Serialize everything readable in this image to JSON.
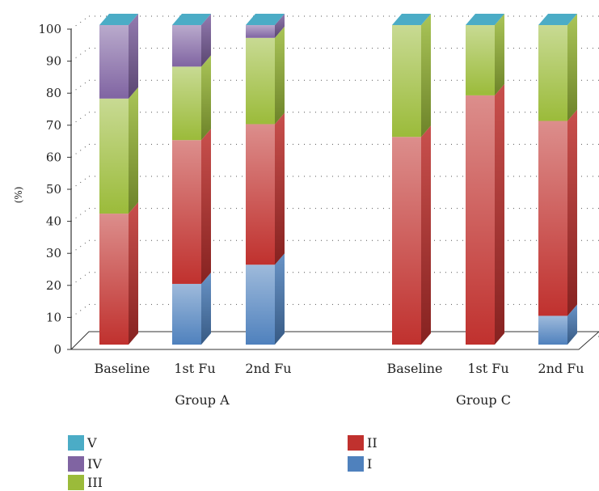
{
  "chart_data": {
    "type": "bar",
    "stacked": true,
    "three_d": true,
    "ylabel": "(%)",
    "ylim": [
      0,
      100
    ],
    "yticks": [
      0,
      10,
      20,
      30,
      40,
      50,
      60,
      70,
      80,
      90,
      100
    ],
    "grid": "dotted",
    "groups": [
      {
        "name": "Group A",
        "categories": [
          "Baseline",
          "1st Fu",
          "2nd Fu"
        ]
      },
      {
        "name": "Group C",
        "categories": [
          "Baseline",
          "1st Fu",
          "2nd Fu"
        ]
      }
    ],
    "categories": [
      "Baseline",
      "1st Fu",
      "2nd Fu",
      "Baseline",
      "1st Fu",
      "2nd Fu"
    ],
    "series": [
      {
        "name": "I",
        "color": "#4f81bd",
        "values": [
          0,
          19,
          25,
          0,
          0,
          9
        ]
      },
      {
        "name": "II",
        "color": "#c0312e",
        "values": [
          41,
          45,
          44,
          65,
          78,
          61
        ]
      },
      {
        "name": "III",
        "color": "#9bbb3a",
        "values": [
          36,
          23,
          27,
          35,
          22,
          30
        ]
      },
      {
        "name": "IV",
        "color": "#8064a2",
        "values": [
          23,
          13,
          4,
          0,
          0,
          0
        ]
      },
      {
        "name": "V",
        "color": "#4bacc6",
        "values": [
          0,
          0,
          0,
          0,
          0,
          0
        ]
      }
    ],
    "legend": {
      "placement": "bottom",
      "items": [
        {
          "label": "V",
          "color": "#4bacc6"
        },
        {
          "label": "IV",
          "color": "#8064a2"
        },
        {
          "label": "III",
          "color": "#9bbb3a"
        },
        {
          "label": "II",
          "color": "#c0312e"
        },
        {
          "label": "I",
          "color": "#4f81bd"
        }
      ]
    }
  }
}
